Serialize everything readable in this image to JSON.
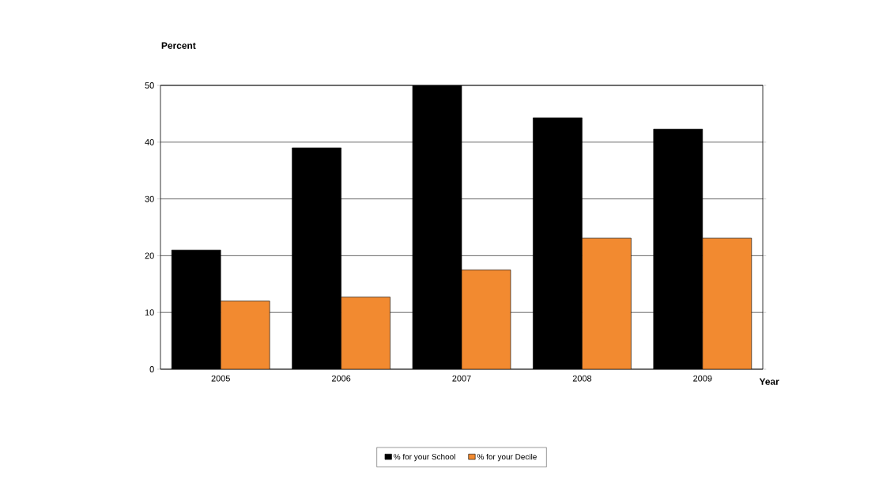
{
  "chart_data": {
    "type": "bar",
    "xlabel": "Year",
    "ylabel": "Percent",
    "categories": [
      "2005",
      "2006",
      "2007",
      "2008",
      "2009"
    ],
    "series": [
      {
        "name": "% for your School",
        "color": "#000000",
        "values": [
          21.0,
          39.0,
          50.0,
          44.3,
          42.3
        ]
      },
      {
        "name": "% for your Decile",
        "color": "#f28a30",
        "values": [
          12.0,
          12.7,
          17.5,
          23.1,
          23.1
        ]
      }
    ],
    "ylim": [
      0,
      50
    ],
    "yticks": [
      0,
      10,
      20,
      30,
      40,
      50
    ],
    "grid": "y",
    "legend": "bottom"
  }
}
